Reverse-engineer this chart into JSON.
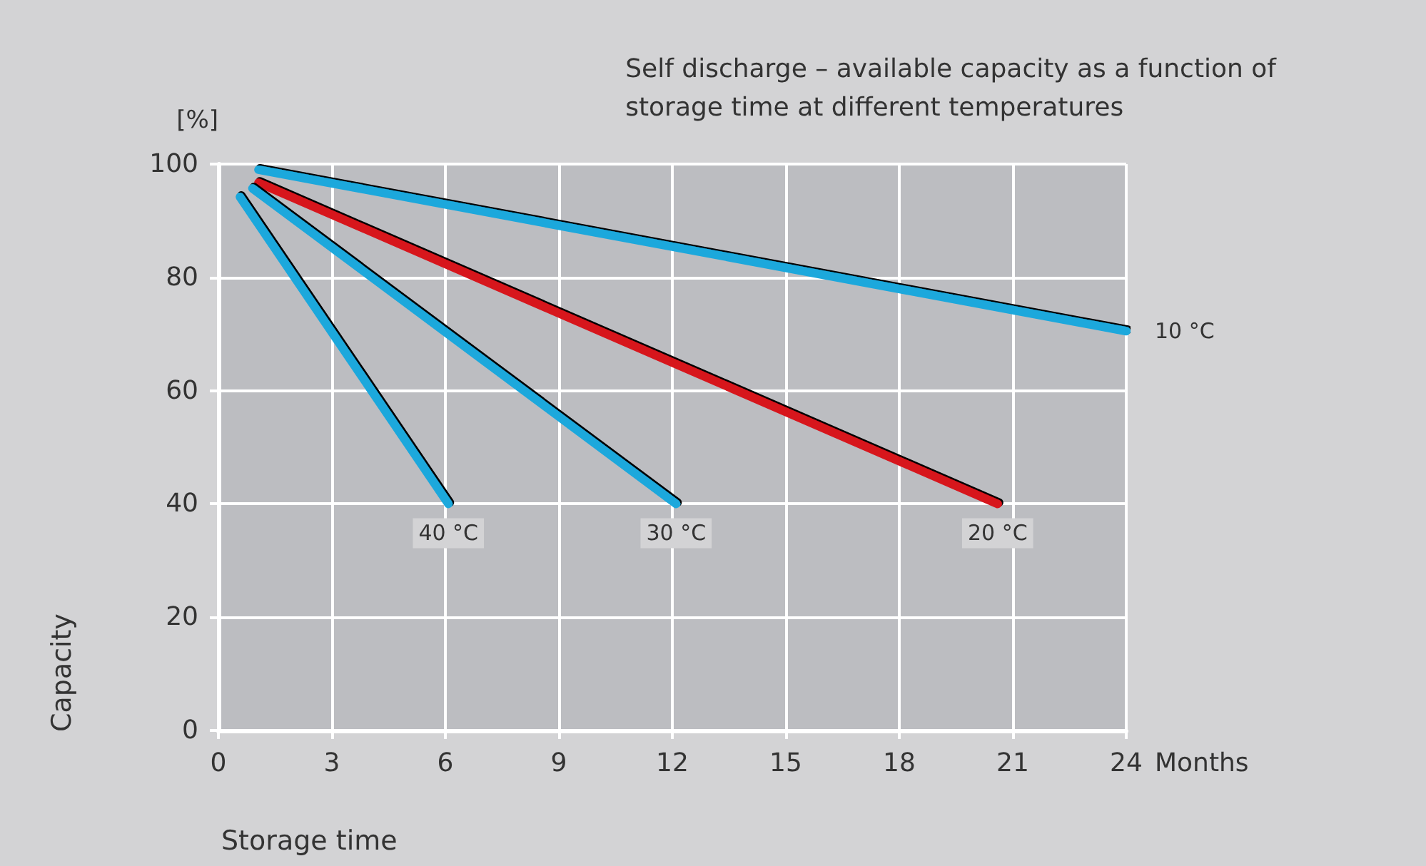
{
  "chart_data": {
    "type": "line",
    "title": "Self discharge – available capacity as a function of\nstorage time at different temperatures",
    "xlabel": "Storage time",
    "ylabel": "Capacity",
    "annotations": [
      "[%]",
      "Months"
    ],
    "xlim": [
      0,
      24
    ],
    "xticks": [
      0,
      3,
      6,
      9,
      12,
      15,
      18,
      21,
      24
    ],
    "ylim": [
      0,
      100
    ],
    "yticks": [
      0,
      20,
      40,
      60,
      80,
      100
    ],
    "grid": true,
    "marker": "none",
    "line_style": "solid",
    "series": [
      {
        "name": "10 °C",
        "color": "#1ea8dc",
        "x": [
          1.06,
          24
        ],
        "values": [
          99,
          70.5
        ]
      },
      {
        "name": "20 °C",
        "color": "#d7141e",
        "x": [
          1.06,
          20.6
        ],
        "values": [
          96.7,
          40
        ]
      },
      {
        "name": "30 °C",
        "color": "#1ea8dc",
        "x": [
          0.9,
          12.1
        ],
        "values": [
          95.7,
          40
        ]
      },
      {
        "name": "40 °C",
        "color": "#1ea8dc",
        "x": [
          0.57,
          6.08
        ],
        "values": [
          94.2,
          40
        ]
      }
    ]
  }
}
